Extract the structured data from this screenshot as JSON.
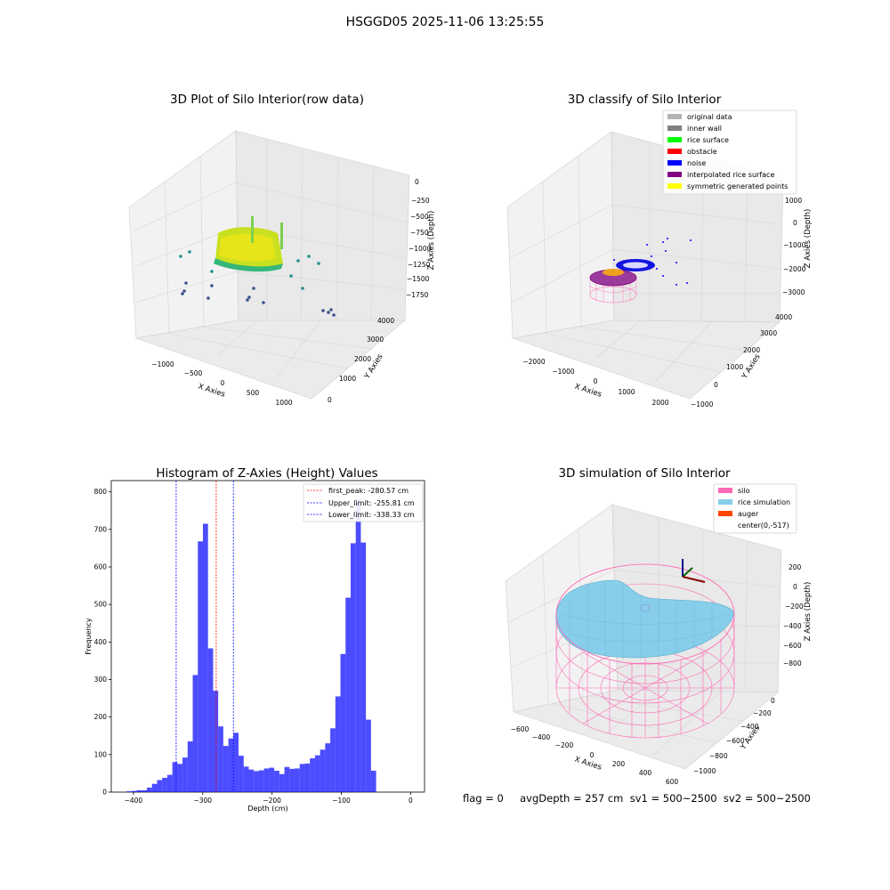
{
  "figure": {
    "title": "HSGGD05 2025-11-06 13:25:55",
    "footer": "flag = 0     avgDepth = 257 cm  sv1 = 500~2500  sv2 = 500~2500"
  },
  "chart_data": [
    {
      "type": "scatter",
      "title": "3D Plot of Silo Interior(row data)",
      "xlabel": "X Axies",
      "ylabel": "Y Axies",
      "zlabel": "Z Axies (Depth)",
      "x_ticks": [
        "−1000",
        "−500",
        "0",
        "500",
        "1000"
      ],
      "y_ticks": [
        "0",
        "1000",
        "2000",
        "3000",
        "4000"
      ],
      "z_ticks": [
        "0",
        "−250",
        "−500",
        "−750",
        "−1000",
        "−1250",
        "−1500",
        "−1750"
      ],
      "colormap": [
        "#440154",
        "#3b528b",
        "#21918c",
        "#5ec962",
        "#fde725"
      ]
    },
    {
      "type": "scatter",
      "title": "3D classify of Silo Interior",
      "xlabel": "X Axies",
      "ylabel": "Y Axies",
      "zlabel": "Z Axies (Depth)",
      "x_ticks": [
        "−2000",
        "−1000",
        "0",
        "1000",
        "2000"
      ],
      "y_ticks": [
        "−1000",
        "0",
        "1000",
        "2000",
        "3000",
        "4000"
      ],
      "z_ticks": [
        "1000",
        "0",
        "−1000",
        "−2000",
        "−3000"
      ],
      "legend_position": "top-right",
      "legend": [
        {
          "label": "original data",
          "color": "#b3b3b3"
        },
        {
          "label": "inner wall",
          "color": "#808080"
        },
        {
          "label": "rice surface",
          "color": "#00ff00"
        },
        {
          "label": "obstacle",
          "color": "#ff0000"
        },
        {
          "label": "noise",
          "color": "#0000ff"
        },
        {
          "label": "interpolated rice surface",
          "color": "#800080"
        },
        {
          "label": "symmetric generated points",
          "color": "#ffff00"
        }
      ]
    },
    {
      "type": "bar",
      "title": "Histogram of Z-Axies (Height) Values",
      "xlabel": "Depth (cm)",
      "ylabel": "Frequency",
      "xlim": [
        -432,
        20
      ],
      "ylim": [
        0,
        830
      ],
      "x_ticks": [
        -400,
        -300,
        -200,
        -100,
        0
      ],
      "x_tick_labels": [
        "−400",
        "−300",
        "−200",
        "−100",
        "0"
      ],
      "y_ticks": [
        0,
        100,
        200,
        300,
        400,
        500,
        600,
        700,
        800
      ],
      "bar_color": "#0000ff",
      "bin_start": -410,
      "bin_width": 7.35,
      "values": [
        2,
        3,
        5,
        5,
        12,
        22,
        32,
        38,
        46,
        80,
        75,
        92,
        135,
        312,
        668,
        715,
        383,
        270,
        175,
        123,
        143,
        158,
        97,
        68,
        60,
        56,
        58,
        63,
        65,
        57,
        48,
        67,
        62,
        63,
        75,
        76,
        90,
        98,
        113,
        130,
        170,
        255,
        368,
        518,
        663,
        780,
        665,
        193,
        57
      ],
      "vlines": [
        {
          "label": "first_peak: -280.57 cm",
          "x": -280.57,
          "color": "#ff0000"
        },
        {
          "label": "Upper_limit: -255.81 cm",
          "x": -255.81,
          "color": "#0000ff"
        },
        {
          "label": "Lower_limit: -338.33 cm",
          "x": -338.33,
          "color": "#0000ff"
        }
      ],
      "legend_position": "top-right"
    },
    {
      "type": "area",
      "title": "3D simulation of Silo Interior",
      "xlabel": "X Axies",
      "ylabel": "Y Axies",
      "zlabel": "Z Axies (Depth)",
      "x_ticks": [
        "−600",
        "−400",
        "−200",
        "0",
        "200",
        "400",
        "600"
      ],
      "y_ticks": [
        "−1000",
        "−800",
        "−600",
        "−400",
        "−200",
        "0"
      ],
      "z_ticks": [
        "200",
        "0",
        "−200",
        "−400",
        "−600",
        "−800"
      ],
      "legend_position": "top-right",
      "legend": [
        {
          "label": "silo",
          "color": "#ff69b4"
        },
        {
          "label": "rice simulation",
          "color": "#87ceeb"
        },
        {
          "label": "auger",
          "color": "#ff4500"
        },
        {
          "label": "center(0,-517)",
          "color": ""
        }
      ]
    }
  ]
}
